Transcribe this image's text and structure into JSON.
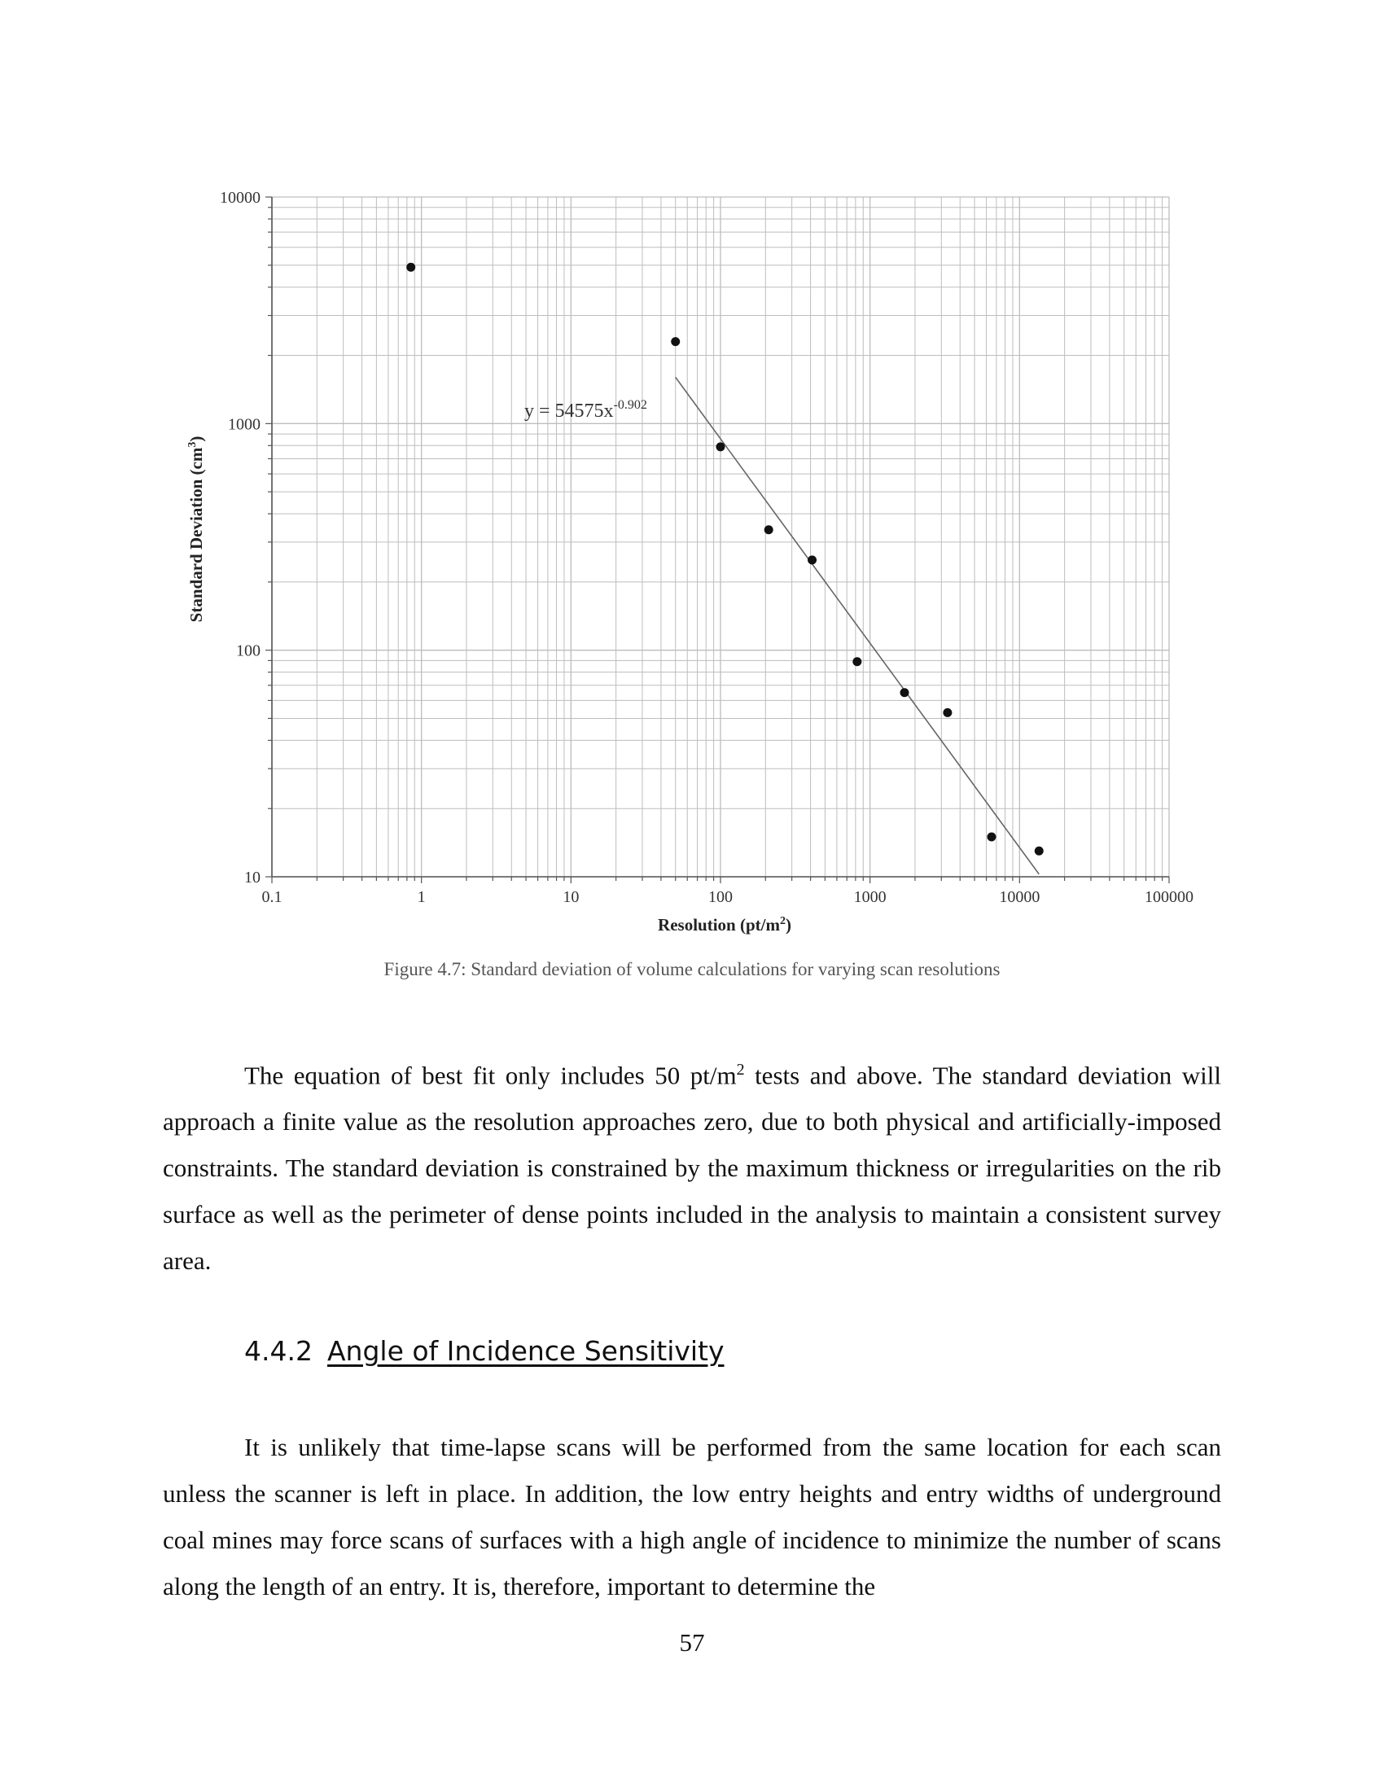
{
  "chart_data": {
    "type": "scatter",
    "xlabel_main": "Resolution (pt/m",
    "xlabel_sup": "2",
    "xlabel_end": ")",
    "ylabel_main": "Standard Deviation (cm",
    "ylabel_sup": "3",
    "ylabel_end": ")",
    "x_scale": "log",
    "y_scale": "log",
    "xlim": [
      0.1,
      100000
    ],
    "ylim": [
      10,
      10000
    ],
    "grid": true,
    "x_ticks": [
      0.1,
      1,
      10,
      100,
      1000,
      10000,
      100000
    ],
    "x_tick_labels": [
      "0.1",
      "1",
      "10",
      "100",
      "1000",
      "10000",
      "100000"
    ],
    "y_ticks": [
      10,
      100,
      1000,
      10000
    ],
    "y_tick_labels": [
      "10",
      "100",
      "1000",
      "10000"
    ],
    "points": [
      {
        "x": 0.85,
        "y": 4900
      },
      {
        "x": 50,
        "y": 2300
      },
      {
        "x": 100,
        "y": 790
      },
      {
        "x": 210,
        "y": 340
      },
      {
        "x": 410,
        "y": 250
      },
      {
        "x": 820,
        "y": 89
      },
      {
        "x": 1700,
        "y": 65
      },
      {
        "x": 3300,
        "y": 53
      },
      {
        "x": 6500,
        "y": 15
      },
      {
        "x": 13500,
        "y": 13
      }
    ],
    "trendline": {
      "equation_main": "y = 54575x",
      "equation_exp": "-0.902",
      "coefficient": 54575,
      "exponent": -0.902,
      "x_range": [
        50,
        13500
      ]
    },
    "colors": {
      "points": "#111111",
      "trendline": "#666666",
      "grid": "#bdbdbd",
      "axis": "#555555"
    }
  },
  "caption": "Figure 4.7:  Standard deviation of volume calculations for varying scan resolutions",
  "paragraph1": {
    "before_sup": "The equation of best fit only includes 50 pt/m",
    "sup": "2",
    "after_sup": " tests and above.  The standard deviation will approach a finite value as the resolution approaches zero, due to both physical and artificially-imposed constraints.  The standard deviation is constrained by the maximum thickness or irregularities on the rib surface as well as the perimeter of dense points included in the analysis to maintain a consistent survey area."
  },
  "heading": {
    "number": "4.4.2",
    "title": "Angle of Incidence Sensitivity"
  },
  "paragraph2": "It is unlikely that time-lapse scans will be performed from the same location for each scan unless the scanner is left in place.  In addition, the low entry heights and entry widths of underground coal mines may force scans of surfaces with a high angle of incidence to minimize the number of scans along the length of an entry.  It is, therefore, important to determine the",
  "page_number": "57"
}
